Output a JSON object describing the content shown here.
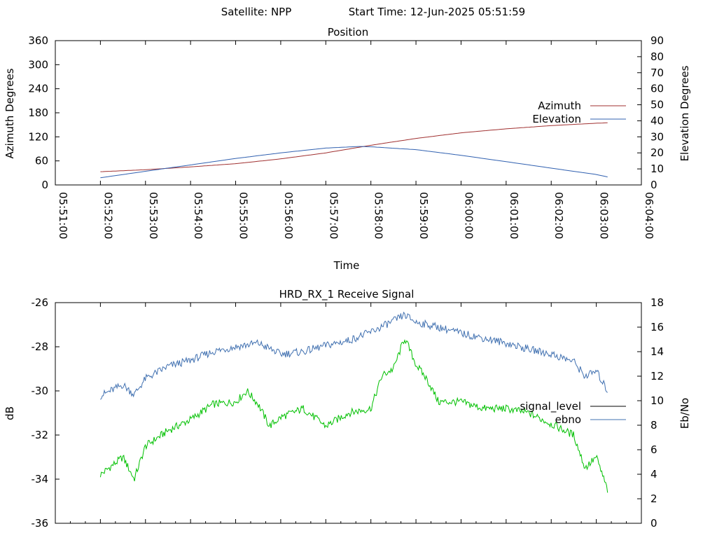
{
  "header": {
    "satellite": "Satellite: NPP",
    "start_time": "Start Time: 12-Jun-2025 05:51:59"
  },
  "colors": {
    "azimuth": "#a03030",
    "elevation": "#3060b0",
    "signal_level": "#00c000",
    "ebno": "#4070b0",
    "axis": "#000000",
    "legend_signal_sample": "#000000"
  },
  "chart_data": [
    {
      "type": "line",
      "title": "Position",
      "xlabel": "Time",
      "ylabel": "Azimuth Degrees",
      "y2label": "Elevation Degrees",
      "xlim_minutes": [
        0,
        13
      ],
      "x_tick_labels": [
        "05:51:00",
        "05:52:00",
        "05:53:00",
        "05:54:00",
        "05:55:00",
        "05:56:00",
        "05:57:00",
        "05:58:00",
        "05:59:00",
        "06:00:00",
        "06:01:00",
        "06:02:00",
        "06:03:00",
        "06:04:00"
      ],
      "ylim": [
        0,
        360
      ],
      "y_ticks": [
        0,
        60,
        120,
        180,
        240,
        300,
        360
      ],
      "y2lim": [
        0,
        90
      ],
      "y2_ticks": [
        0,
        10,
        20,
        30,
        40,
        50,
        60,
        70,
        80,
        90
      ],
      "legend_position": "right",
      "grid": false,
      "series": [
        {
          "name": "Azimuth",
          "axis": "y",
          "points": [
            [
              "05:52:00",
              33
            ],
            [
              "05:53:00",
              38
            ],
            [
              "05:54:00",
              45
            ],
            [
              "05:55:00",
              53
            ],
            [
              "05:56:00",
              65
            ],
            [
              "05:57:00",
              80
            ],
            [
              "05:58:00",
              99
            ],
            [
              "05:59:00",
              116
            ],
            [
              "06:00:00",
              130
            ],
            [
              "06:01:00",
              140
            ],
            [
              "06:02:00",
              148
            ],
            [
              "06:03:00",
              154
            ],
            [
              "06:03:15",
              155
            ]
          ]
        },
        {
          "name": "Elevation",
          "axis": "y2",
          "points": [
            [
              "05:52:00",
              4.5
            ],
            [
              "05:53:00",
              8.5
            ],
            [
              "05:54:00",
              12.5
            ],
            [
              "05:55:00",
              16.5
            ],
            [
              "05:56:00",
              20
            ],
            [
              "05:57:00",
              23
            ],
            [
              "05:57:45",
              24
            ],
            [
              "05:58:00",
              23.8
            ],
            [
              "05:59:00",
              22
            ],
            [
              "06:00:00",
              18.5
            ],
            [
              "06:01:00",
              14.5
            ],
            [
              "06:02:00",
              10.5
            ],
            [
              "06:03:00",
              6.5
            ],
            [
              "06:03:15",
              5
            ]
          ]
        }
      ]
    },
    {
      "type": "line",
      "title": "HRD_RX_1 Receive Signal",
      "ylabel": "dB",
      "y2label": "Eb/No",
      "xlim_minutes": [
        0,
        13
      ],
      "ylim": [
        -36,
        -26
      ],
      "y_ticks": [
        -36,
        -34,
        -32,
        -30,
        -28,
        -26
      ],
      "y2lim": [
        0,
        18
      ],
      "y2_ticks": [
        0,
        2,
        4,
        6,
        8,
        10,
        12,
        14,
        16,
        18
      ],
      "legend_position": "right",
      "grid": false,
      "series": [
        {
          "name": "signal_level",
          "axis": "y",
          "points": [
            [
              "05:52:00",
              -33.8
            ],
            [
              "05:52:30",
              -33.0
            ],
            [
              "05:52:45",
              -34.0
            ],
            [
              "05:53:00",
              -32.5
            ],
            [
              "05:53:30",
              -31.8
            ],
            [
              "05:54:00",
              -31.3
            ],
            [
              "05:54:30",
              -30.6
            ],
            [
              "05:55:00",
              -30.5
            ],
            [
              "05:55:15",
              -30.0
            ],
            [
              "05:55:30",
              -30.6
            ],
            [
              "05:55:45",
              -31.6
            ],
            [
              "05:56:00",
              -31.2
            ],
            [
              "05:56:30",
              -30.8
            ],
            [
              "05:57:00",
              -31.6
            ],
            [
              "05:57:30",
              -31.0
            ],
            [
              "05:58:00",
              -30.8
            ],
            [
              "05:58:15",
              -29.3
            ],
            [
              "05:58:30",
              -29.0
            ],
            [
              "05:58:45",
              -27.6
            ],
            [
              "05:59:00",
              -28.8
            ],
            [
              "05:59:15",
              -29.5
            ],
            [
              "05:59:30",
              -30.5
            ],
            [
              "06:00:00",
              -30.5
            ],
            [
              "06:00:30",
              -30.8
            ],
            [
              "06:01:00",
              -30.8
            ],
            [
              "06:01:30",
              -31.0
            ],
            [
              "06:02:00",
              -31.5
            ],
            [
              "06:02:30",
              -32.0
            ],
            [
              "06:02:45",
              -33.5
            ],
            [
              "06:03:00",
              -33.0
            ],
            [
              "06:03:15",
              -34.5
            ]
          ]
        },
        {
          "name": "ebno",
          "axis": "y2",
          "points": [
            [
              "05:52:00",
              10.4
            ],
            [
              "05:52:30",
              11.3
            ],
            [
              "05:52:45",
              10.5
            ],
            [
              "05:53:00",
              11.8
            ],
            [
              "05:53:30",
              12.8
            ],
            [
              "05:54:00",
              13.3
            ],
            [
              "05:54:30",
              14.0
            ],
            [
              "05:55:00",
              14.4
            ],
            [
              "05:55:30",
              14.7
            ],
            [
              "05:56:00",
              13.8
            ],
            [
              "05:56:30",
              14.0
            ],
            [
              "05:57:00",
              14.5
            ],
            [
              "05:57:30",
              14.9
            ],
            [
              "05:58:00",
              15.6
            ],
            [
              "05:58:30",
              16.5
            ],
            [
              "05:58:45",
              17.0
            ],
            [
              "05:59:00",
              16.4
            ],
            [
              "05:59:30",
              16.0
            ],
            [
              "06:00:00",
              15.5
            ],
            [
              "06:00:30",
              15.1
            ],
            [
              "06:01:00",
              14.7
            ],
            [
              "06:01:30",
              14.2
            ],
            [
              "06:02:00",
              13.8
            ],
            [
              "06:02:30",
              13.2
            ],
            [
              "06:02:45",
              12.0
            ],
            [
              "06:03:00",
              12.4
            ],
            [
              "06:03:15",
              10.8
            ]
          ]
        }
      ]
    }
  ]
}
